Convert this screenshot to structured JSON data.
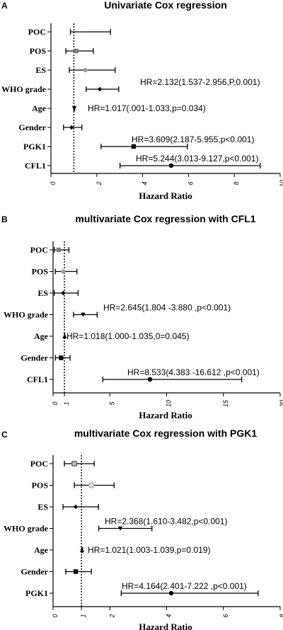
{
  "chart_data": [
    {
      "type": "forest",
      "letter": "A",
      "title": "Univariate Cox regression",
      "xlabel": "Hazard Ratio",
      "xlim": [
        0,
        10
      ],
      "xticks": [
        "0",
        "2",
        "4",
        "6",
        "8",
        "10"
      ],
      "reference_line": 1,
      "rows": [
        {
          "label": "POC",
          "hr": 1.5,
          "lo": 0.85,
          "hi": 2.6,
          "marker": "tick",
          "color": "#9aa0a6"
        },
        {
          "label": "POS",
          "hr": 1.1,
          "lo": 0.65,
          "hi": 1.85,
          "marker": "square",
          "color": "#7f7f7f"
        },
        {
          "label": "ES",
          "hr": 1.5,
          "lo": 0.8,
          "hi": 2.8,
          "marker": "circle",
          "color": "#9aa0a6"
        },
        {
          "label": "WHO grade",
          "hr": 2.132,
          "lo": 1.537,
          "hi": 2.956,
          "marker": "diamond",
          "color": "#000000",
          "annotation": "HR=2.132(1.537-2.956,P,0.001)"
        },
        {
          "label": "Age",
          "hr": 1.017,
          "lo": 1.001,
          "hi": 1.033,
          "marker": "triangle-down",
          "color": "#000000",
          "annotation": "HR=1.017(.001-1.033,p=0.034)"
        },
        {
          "label": "Gender",
          "hr": 0.9,
          "lo": 0.55,
          "hi": 1.35,
          "marker": "diamond",
          "color": "#000000"
        },
        {
          "label": "PGK1",
          "hr": 3.609,
          "lo": 2.187,
          "hi": 5.955,
          "marker": "square",
          "color": "#000000",
          "annotation": "HR=3.609(2.187-5.955,p<0.001)"
        },
        {
          "label": "CFL1",
          "hr": 5.244,
          "lo": 3.013,
          "hi": 9.127,
          "marker": "circle",
          "color": "#000000",
          "annotation": "HR=5.244(3.013-9.127,p<0.001)"
        }
      ]
    },
    {
      "type": "forest",
      "letter": "B",
      "title": "multivariate Cox regression with CFL1",
      "xlabel": "Hazard Ratio",
      "xlim": [
        0,
        20
      ],
      "xticks": [
        "0",
        "1",
        "5",
        "10",
        "15",
        "20"
      ],
      "reference_line": 1,
      "rows": [
        {
          "label": "POC",
          "hr": 0.5,
          "lo": 0.1,
          "hi": 1.4,
          "marker": "square",
          "color": "#7f7f7f"
        },
        {
          "label": "POS",
          "hr": 0.9,
          "lo": 0.2,
          "hi": 2.1,
          "marker": "circle",
          "color": "#9aa0a6"
        },
        {
          "label": "ES",
          "hr": 0.9,
          "lo": 0.1,
          "hi": 2.2,
          "marker": "diamond",
          "color": "#000000"
        },
        {
          "label": "WHO grade",
          "hr": 2.645,
          "lo": 1.804,
          "hi": 3.88,
          "marker": "triangle-down",
          "color": "#000000",
          "annotation": "HR=2.645(1.804 -3.880 ,p<0.001)"
        },
        {
          "label": "Age",
          "hr": 1.018,
          "lo": 1.0,
          "hi": 1.035,
          "marker": "triangle-up",
          "color": "#000000",
          "annotation": "HR=1.018(1.000-1.035,0=0.045)"
        },
        {
          "label": "Gender",
          "hr": 0.7,
          "lo": 0.2,
          "hi": 1.5,
          "marker": "square",
          "color": "#000000"
        },
        {
          "label": "CFL1",
          "hr": 8.533,
          "lo": 4.383,
          "hi": 16.612,
          "marker": "circle",
          "color": "#000000",
          "annotation": "HR=8.533(4.383 -16.612 ,p<0.001)"
        }
      ]
    },
    {
      "type": "forest",
      "letter": "C",
      "title": "multivariate Cox regression with  PGK1",
      "xlabel": "Hazard Ratio",
      "xlim": [
        0,
        8
      ],
      "xticks": [
        "0",
        "1",
        "2",
        "4",
        "6",
        "8"
      ],
      "reference_line": 1,
      "rows": [
        {
          "label": "POC",
          "hr": 0.75,
          "lo": 0.4,
          "hi": 1.45,
          "marker": "square-open",
          "color": "#5a5a5a"
        },
        {
          "label": "POS",
          "hr": 1.35,
          "lo": 0.75,
          "hi": 2.15,
          "marker": "circle-open",
          "color": "#9aa0a6"
        },
        {
          "label": "ES",
          "hr": 0.8,
          "lo": 0.35,
          "hi": 1.6,
          "marker": "diamond",
          "color": "#000000"
        },
        {
          "label": "WHO grade",
          "hr": 2.368,
          "lo": 1.61,
          "hi": 3.482,
          "marker": "triangle-down",
          "color": "#000000",
          "annotation": "HR=2.368(1.610-3.482,p<0.001)"
        },
        {
          "label": "Age",
          "hr": 1.021,
          "lo": 1.003,
          "hi": 1.039,
          "marker": "triangle-up",
          "color": "#000000",
          "annotation": "HR=1.021(1.003-1.039,p=0.019)"
        },
        {
          "label": "Gender",
          "hr": 0.8,
          "lo": 0.45,
          "hi": 1.35,
          "marker": "square",
          "color": "#000000"
        },
        {
          "label": "PGK1",
          "hr": 4.164,
          "lo": 2.401,
          "hi": 7.222,
          "marker": "circle",
          "color": "#000000",
          "annotation": "HR=4.164(2.401-7.222 ,p<0.001)"
        }
      ]
    }
  ]
}
